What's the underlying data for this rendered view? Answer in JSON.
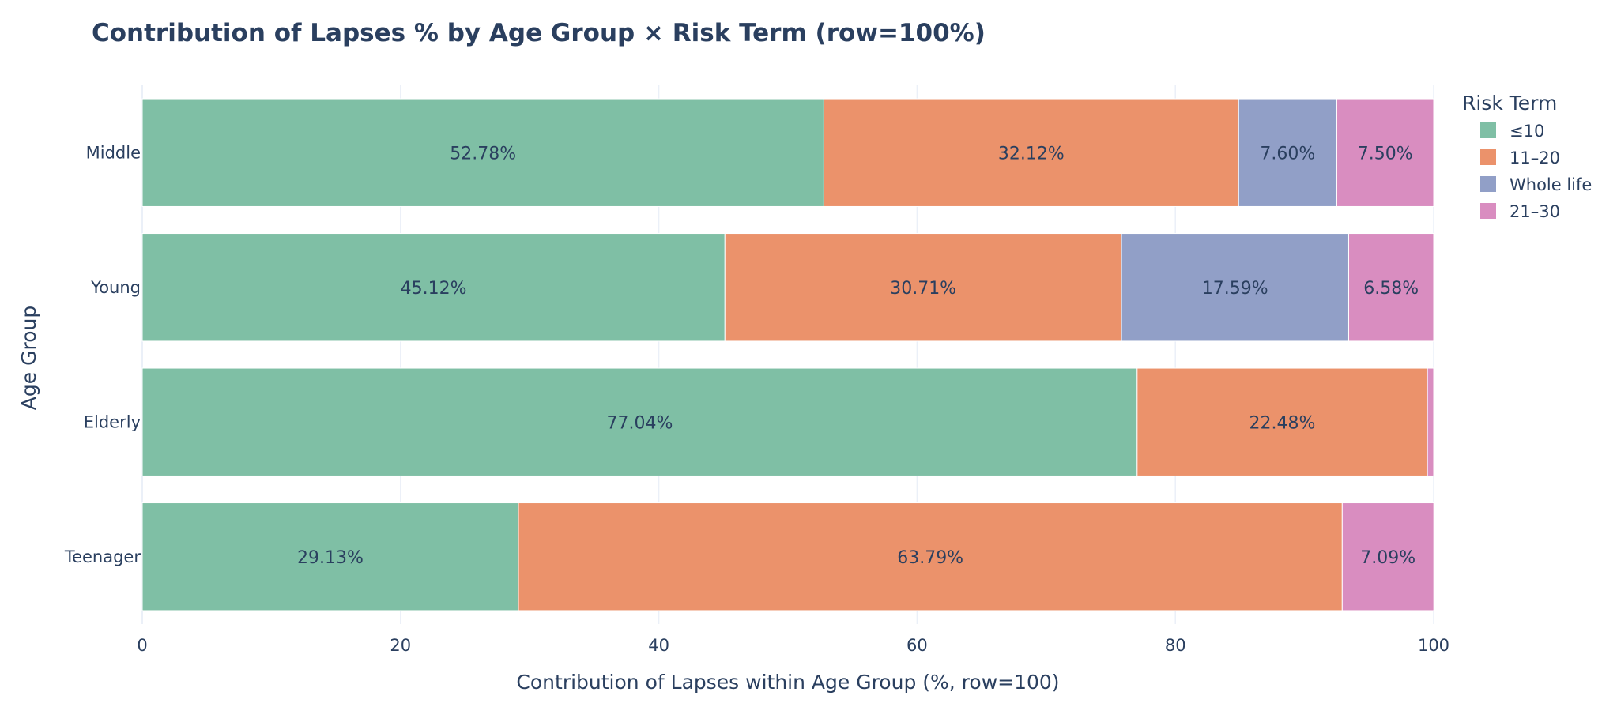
{
  "chart_data": {
    "type": "bar",
    "orientation": "horizontal",
    "barmode": "stack",
    "title": "Contribution of Lapses % by Age Group × Risk Term (row=100%)",
    "xlabel": "Contribution of Lapses within Age Group (%, row=100)",
    "ylabel": "Age Group",
    "xlim": [
      0,
      100
    ],
    "x_ticks": [
      0,
      20,
      40,
      60,
      80,
      100
    ],
    "categories": [
      "Teenager",
      "Elderly",
      "Young",
      "Middle"
    ],
    "legend_title": "Risk Term",
    "legend_position": "top-right",
    "grid": true,
    "series": [
      {
        "name": "≤10",
        "color": "#7fbfa5",
        "values": [
          29.13,
          77.04,
          45.12,
          52.78
        ],
        "labels": [
          "29.13%",
          "77.04%",
          "45.12%",
          "52.78%"
        ]
      },
      {
        "name": "11–20",
        "color": "#eb926b",
        "values": [
          63.79,
          22.48,
          30.71,
          32.12
        ],
        "labels": [
          "63.79%",
          "22.48%",
          "30.71%",
          "32.12%"
        ]
      },
      {
        "name": "Whole life",
        "color": "#919fc7",
        "values": [
          0,
          0,
          17.59,
          7.6
        ],
        "labels": [
          "",
          "",
          "17.59%",
          "7.60%"
        ]
      },
      {
        "name": "21–30",
        "color": "#d98dc0",
        "values": [
          7.09,
          0.48,
          6.58,
          7.5
        ],
        "labels": [
          "7.09%",
          "",
          "6.58%",
          "7.50%"
        ]
      }
    ]
  }
}
